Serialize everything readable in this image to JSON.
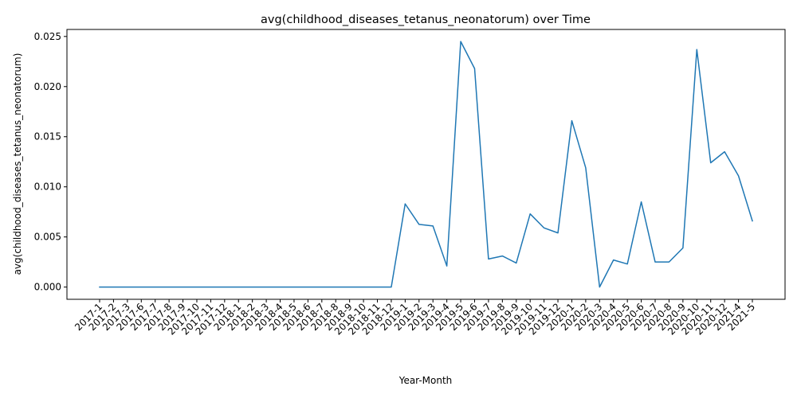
{
  "chart_data": {
    "type": "line",
    "title": "avg(childhood_diseases_tetanus_neonatorum) over Time",
    "xlabel": "Year-Month",
    "ylabel": "avg(childhood_diseases_tetanus_neonatorum)",
    "ylim": [
      -0.00122,
      0.0257
    ],
    "yticks": [
      "0.000",
      "0.005",
      "0.010",
      "0.015",
      "0.020",
      "0.025"
    ],
    "ytick_values": [
      0,
      0.005,
      0.01,
      0.015,
      0.02,
      0.025
    ],
    "grid": false,
    "legend": "none",
    "line_color": "#1f77b4",
    "categories": [
      "2017-1",
      "2017-2",
      "2017-3",
      "2017-6",
      "2017-7",
      "2017-8",
      "2017-9",
      "2017-10",
      "2017-11",
      "2017-12",
      "2018-1",
      "2018-2",
      "2018-3",
      "2018-4",
      "2018-5",
      "2018-6",
      "2018-7",
      "2018-8",
      "2018-9",
      "2018-10",
      "2018-11",
      "2018-12",
      "2019-1",
      "2019-2",
      "2019-3",
      "2019-4",
      "2019-5",
      "2019-6",
      "2019-7",
      "2019-8",
      "2019-9",
      "2019-10",
      "2019-11",
      "2019-12",
      "2020-1",
      "2020-2",
      "2020-3",
      "2020-4",
      "2020-5",
      "2020-6",
      "2020-7",
      "2020-8",
      "2020-9",
      "2020-10",
      "2020-11",
      "2020-12",
      "2021-4",
      "2021-5"
    ],
    "series": [
      {
        "values": [
          0,
          0,
          0,
          0,
          0,
          0,
          0,
          0,
          0,
          0,
          0,
          0,
          0,
          0,
          0,
          0,
          0,
          0,
          0,
          0,
          0,
          0,
          0.0083,
          0.00625,
          0.0061,
          0.0021,
          0.0245,
          0.0218,
          0.0028,
          0.0031,
          0.0024,
          0.0073,
          0.0059,
          0.0054,
          0.0166,
          0.0119,
          0,
          0.0027,
          0.0023,
          0.0085,
          0.0025,
          0.0025,
          0.0039,
          0.0237,
          0.0124,
          0.0135,
          0.0111,
          0.0066
        ]
      }
    ]
  }
}
